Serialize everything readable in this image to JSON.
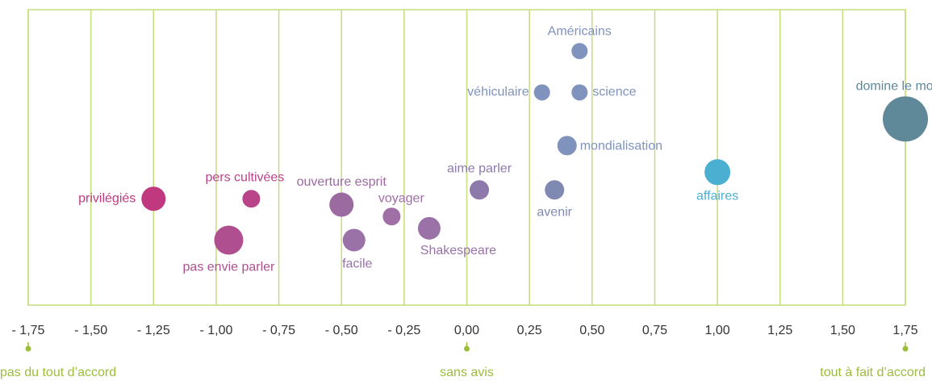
{
  "chart_data": {
    "type": "bubble",
    "labels": [
      "Américains",
      "véhiculaire",
      "science",
      "mondialisation",
      "domine le monde",
      "affaires",
      "aime parler",
      "avenir",
      "privilégiés",
      "pers cultivées",
      "ouverture esprit",
      "voyager",
      "Shakespeare",
      "pas envie parler",
      "facile"
    ],
    "x": [
      0.45,
      0.3,
      0.45,
      0.4,
      1.75,
      1.0,
      0.05,
      0.35,
      -1.25,
      -0.86,
      -0.5,
      -0.3,
      -0.15,
      -0.95,
      -0.45
    ],
    "y": [
      86,
      72,
      72,
      54,
      63,
      45,
      39,
      39,
      36,
      36,
      34,
      30,
      26,
      22,
      22
    ],
    "sizes": [
      10,
      10,
      10,
      12,
      28,
      16,
      12,
      12,
      15,
      11,
      15,
      11,
      14,
      18,
      14
    ],
    "colors": [
      "#7f93bd",
      "#7f93bd",
      "#7f93bd",
      "#7f93bd",
      "#5f8898",
      "#4bafd2",
      "#8d7aab",
      "#7f89b2",
      "#c0397e",
      "#b9448a",
      "#9b6aa0",
      "#9f6fa5",
      "#9a72a8",
      "#b04f90",
      "#9a72a8"
    ],
    "xlim": [
      -1.75,
      1.75
    ],
    "ylim": [
      0,
      100
    ],
    "xticks": [
      {
        "value": -1.75,
        "label": "- 1,75"
      },
      {
        "value": -1.5,
        "label": "- 1,50"
      },
      {
        "value": -1.25,
        "label": "- 1,25"
      },
      {
        "value": -1.0,
        "label": "- 1,00"
      },
      {
        "value": -0.75,
        "label": "- 0,75"
      },
      {
        "value": -0.5,
        "label": "- 0,50"
      },
      {
        "value": -0.25,
        "label": "- 0,25"
      },
      {
        "value": 0,
        "label": "0,00"
      },
      {
        "value": 0.25,
        "label": "0,25"
      },
      {
        "value": 0.5,
        "label": "0,50"
      },
      {
        "value": 0.75,
        "label": "0,75"
      },
      {
        "value": 1.0,
        "label": "1,00"
      },
      {
        "value": 1.25,
        "label": "1,25"
      },
      {
        "value": 1.5,
        "label": "1,50"
      },
      {
        "value": 1.75,
        "label": "1,75"
      }
    ],
    "grid": true,
    "annotations": [
      {
        "text": "pas du tout d’accord",
        "x": -1.75
      },
      {
        "text": "sans avis",
        "x": 0
      },
      {
        "text": "tout à fait d’accord",
        "x": 1.75
      }
    ]
  }
}
